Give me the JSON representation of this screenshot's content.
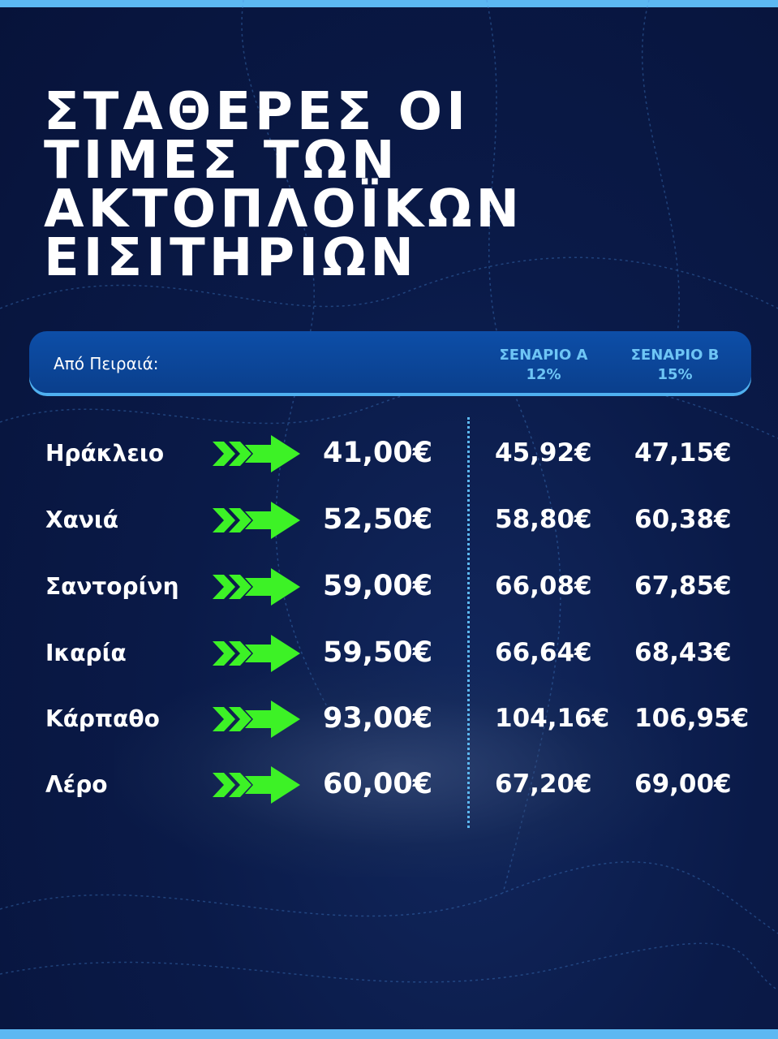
{
  "title_lines": [
    "ΣΤΑΘΕΡΕΣ ΟΙ",
    "ΤΙΜΕΣ ΤΩΝ",
    "ΑΚΤΟΠΛΟΪΚΩΝ",
    "ΕΙΣΙΤΗΡΙΩΝ"
  ],
  "header": {
    "from_label": "Από Πειραιά:",
    "scenario_a": {
      "name": "ΣΕΝΑΡΙΟ Α",
      "pct": "12%"
    },
    "scenario_b": {
      "name": "ΣΕΝΑΡΙΟ Β",
      "pct": "15%"
    }
  },
  "colors": {
    "background": "#0a1a48",
    "accent_bar": "#5cb8f2",
    "arrow": "#3df226",
    "header_fill": "#0d4ea8",
    "scenario_text": "#6ec5f5"
  },
  "rows": [
    {
      "destination": "Ηράκλειο",
      "current": "41,00€",
      "scenario_a": "45,92€",
      "scenario_b": "47,15€"
    },
    {
      "destination": "Χανιά",
      "current": "52,50€",
      "scenario_a": "58,80€",
      "scenario_b": "60,38€"
    },
    {
      "destination": "Σαντορίνη",
      "current": "59,00€",
      "scenario_a": "66,08€",
      "scenario_b": "67,85€"
    },
    {
      "destination": "Ικαρία",
      "current": "59,50€",
      "scenario_a": "66,64€",
      "scenario_b": "68,43€"
    },
    {
      "destination": "Κάρπαθο",
      "current": "93,00€",
      "scenario_a": "104,16€",
      "scenario_b": "106,95€"
    },
    {
      "destination": "Λέρο",
      "current": "60,00€",
      "scenario_a": "67,20€",
      "scenario_b": "69,00€"
    }
  ]
}
